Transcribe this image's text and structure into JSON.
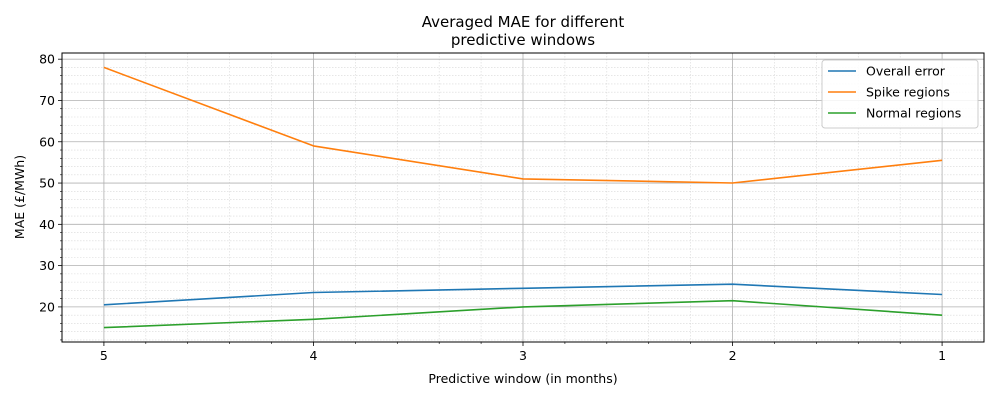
{
  "chart_data": {
    "type": "line",
    "title_lines": [
      "Averaged MAE for different",
      "predictive windows"
    ],
    "xlabel": "Predictive window (in months)",
    "ylabel": "MAE (£/MWh)",
    "x": [
      5,
      4,
      3,
      2,
      1
    ],
    "x_tick_labels": [
      "5",
      "4",
      "3",
      "2",
      "1"
    ],
    "x_reversed": true,
    "xlim": [
      5.2,
      0.8
    ],
    "ylim": [
      11.5,
      81.5
    ],
    "y_ticks": [
      20,
      30,
      40,
      50,
      60,
      70,
      80
    ],
    "y_tick_labels": [
      "20",
      "30",
      "40",
      "50",
      "60",
      "70",
      "80"
    ],
    "grid": true,
    "minor_grid": true,
    "legend_position": "top-right",
    "series": [
      {
        "name": "Overall error",
        "color": "#1f77b4",
        "values": [
          20.5,
          23.5,
          24.5,
          25.5,
          23.0
        ]
      },
      {
        "name": "Spike regions",
        "color": "#ff7f0e",
        "values": [
          78.0,
          59.0,
          51.0,
          50.0,
          55.5
        ]
      },
      {
        "name": "Normal regions",
        "color": "#2ca02c",
        "values": [
          15.0,
          17.0,
          20.0,
          21.5,
          18.0
        ]
      }
    ]
  }
}
